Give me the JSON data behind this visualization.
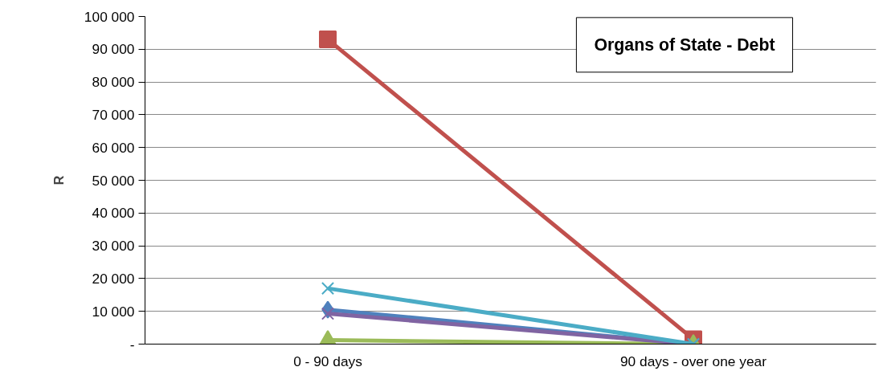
{
  "chart_data": {
    "type": "line",
    "title": "Organs of State - Debt",
    "ylabel": "R",
    "categories": [
      "0 - 90 days",
      "90 days - over one year"
    ],
    "series": [
      {
        "color": "#4f81bd",
        "marker": "diamond",
        "values": [
          10500,
          0
        ]
      },
      {
        "color": "#c0504d",
        "marker": "square",
        "values": [
          93000,
          1500
        ]
      },
      {
        "color": "#9bbb59",
        "marker": "triangle",
        "values": [
          1200,
          0
        ]
      },
      {
        "color": "#8064a2",
        "marker": "cross",
        "values": [
          9300,
          0
        ]
      },
      {
        "color": "#4bacc6",
        "marker": "cross",
        "values": [
          17000,
          0
        ]
      }
    ],
    "ylim": [
      0,
      100000
    ],
    "yticks": [
      {
        "value": 0,
        "label": "-"
      },
      {
        "value": 10000,
        "label": "10 000"
      },
      {
        "value": 20000,
        "label": "20 000"
      },
      {
        "value": 30000,
        "label": "30 000"
      },
      {
        "value": 40000,
        "label": "40 000"
      },
      {
        "value": 50000,
        "label": "50 000"
      },
      {
        "value": 60000,
        "label": "60 000"
      },
      {
        "value": 70000,
        "label": "70 000"
      },
      {
        "value": 80000,
        "label": "80 000"
      },
      {
        "value": 90000,
        "label": "90 000"
      },
      {
        "value": 100000,
        "label": "100 000"
      }
    ],
    "grid": "y",
    "line_style": "solid"
  }
}
